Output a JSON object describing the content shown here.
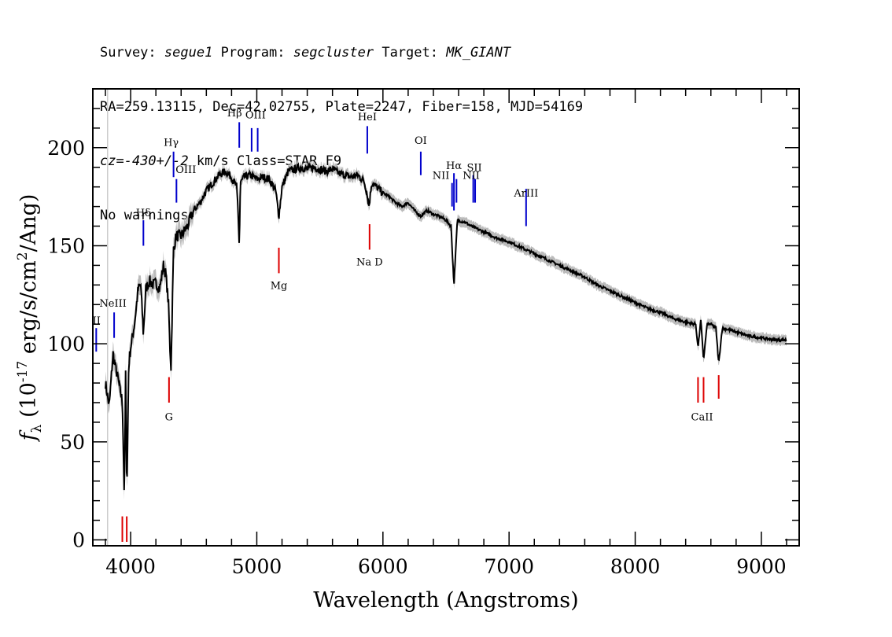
{
  "header": {
    "survey_label": "Survey:",
    "survey": "segue1",
    "program_label": "Program:",
    "program": "segcluster",
    "target_label": "Target:",
    "target": "MK_GIANT",
    "line2": "RA=259.13115, Dec=42.02755, Plate=2247, Fiber=158, MJD=54169",
    "cz_label": "cz=",
    "cz_value": "-430+/-2",
    "cz_rest": " km/s Class=STAR F9",
    "warnings": "No warnings."
  },
  "chart_data": {
    "type": "line",
    "title": "",
    "xlabel": "Wavelength (Angstroms)",
    "ylabel": "f_λ (10^-17 erg/s/cm^2/Ang)",
    "xlim": [
      3700,
      9300
    ],
    "ylim": [
      -3,
      230
    ],
    "x_ticks": [
      4000,
      5000,
      6000,
      7000,
      8000,
      9000
    ],
    "y_ticks": [
      0,
      50,
      100,
      150,
      200
    ],
    "x_tick_labels": [
      "4000",
      "5000",
      "6000",
      "7000",
      "8000",
      "9000"
    ],
    "y_tick_labels": [
      "0",
      "50",
      "100",
      "150",
      "200"
    ],
    "grid": false,
    "colors": {
      "spectrum": "#000000",
      "error_band": "#bbbbbb",
      "emission": "#0000cc",
      "absorption": "#dd0000"
    },
    "series": [
      {
        "x": [
          3800,
          3830,
          3860,
          3880,
          3900,
          3920,
          3935,
          3950,
          3960,
          3970,
          3985,
          4000,
          4030,
          4060,
          4080,
          4101,
          4120,
          4150,
          4180,
          4200,
          4230,
          4260,
          4280,
          4300,
          4310,
          4320,
          4340,
          4360,
          4400,
          4450,
          4500,
          4550,
          4600,
          4650,
          4700,
          4750,
          4800,
          4840,
          4850,
          4861,
          4870,
          4900,
          4950,
          5000,
          5050,
          5100,
          5150,
          5175,
          5200,
          5250,
          5300,
          5350,
          5400,
          5450,
          5500,
          5550,
          5600,
          5650,
          5700,
          5750,
          5800,
          5850,
          5870,
          5890,
          5910,
          5950,
          6000,
          6050,
          6100,
          6150,
          6200,
          6250,
          6300,
          6350,
          6400,
          6450,
          6500,
          6540,
          6563,
          6590,
          6650,
          6700,
          6800,
          6900,
          7000,
          7100,
          7200,
          7300,
          7400,
          7500,
          7600,
          7650,
          7700,
          7800,
          7900,
          8000,
          8100,
          8200,
          8300,
          8400,
          8480,
          8498,
          8520,
          8542,
          8570,
          8600,
          8640,
          8662,
          8690,
          8750,
          8800,
          8900,
          9000,
          9100,
          9200
        ],
        "y": [
          80,
          68,
          95,
          88,
          82,
          75,
          70,
          20,
          85,
          25,
          90,
          98,
          110,
          128,
          130,
          105,
          128,
          132,
          130,
          131,
          128,
          140,
          135,
          120,
          100,
          88,
          148,
          155,
          155,
          160,
          168,
          172,
          178,
          182,
          186,
          188,
          185,
          180,
          170,
          150,
          182,
          185,
          186,
          184,
          185,
          184,
          178,
          165,
          180,
          188,
          189,
          190,
          189,
          190,
          189,
          188,
          189,
          187,
          186,
          185,
          186,
          183,
          178,
          170,
          182,
          180,
          177,
          175,
          172,
          170,
          172,
          168,
          165,
          168,
          166,
          165,
          163,
          160,
          130,
          163,
          162,
          160,
          157,
          154,
          152,
          149,
          146,
          143,
          140,
          137,
          134,
          132,
          130,
          127,
          124,
          121,
          118,
          116,
          113,
          111,
          110,
          98,
          112,
          92,
          110,
          110,
          108,
          90,
          108,
          107,
          106,
          104,
          103,
          102,
          102
        ]
      }
    ],
    "emission_lines": [
      {
        "label": "Hδ",
        "x": 4101
      },
      {
        "label": "Hγ",
        "x": 4340
      },
      {
        "label": "OIII",
        "x": 4363
      },
      {
        "label": "Hβ",
        "x": 4861
      },
      {
        "label": "OIII",
        "x": 4959
      },
      {
        "label": "OIII",
        "x": 5007
      },
      {
        "label": "HeI",
        "x": 5876
      },
      {
        "label": "OI",
        "x": 6300
      },
      {
        "label": "NII",
        "x": 6548
      },
      {
        "label": "Hα",
        "x": 6563
      },
      {
        "label": "NII",
        "x": 6583
      },
      {
        "label": "SII",
        "x": 6716
      },
      {
        "label": "SII",
        "x": 6731
      },
      {
        "label": "ArIII",
        "x": 7135
      },
      {
        "label": "NeIII",
        "x": 3869
      },
      {
        "label": "II",
        "x": 3727
      }
    ],
    "absorption_lines": [
      {
        "label": "",
        "x": 3934
      },
      {
        "label": "",
        "x": 3969
      },
      {
        "label": "G",
        "x": 4304
      },
      {
        "label": "Mg",
        "x": 5175
      },
      {
        "label": "Na D",
        "x": 5894
      },
      {
        "label": "CaII",
        "x": 8498
      },
      {
        "label": "CaII",
        "x": 8542
      },
      {
        "label": "CaII",
        "x": 8662
      }
    ]
  }
}
